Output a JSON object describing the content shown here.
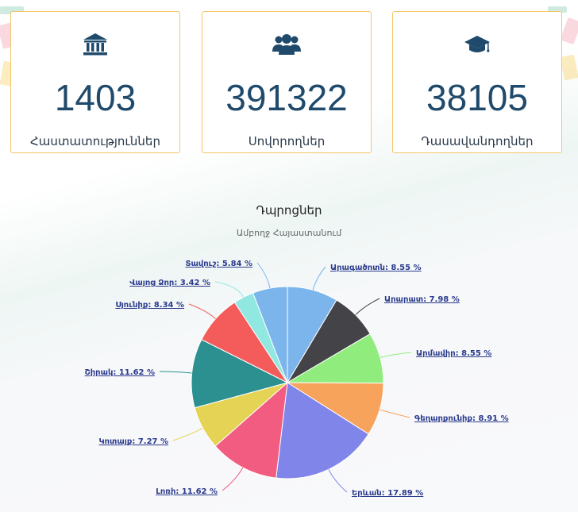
{
  "stats": [
    {
      "value": "1403",
      "label": "Հաստատություններ",
      "icon": "institution-icon"
    },
    {
      "value": "391322",
      "label": "Սովորողներ",
      "icon": "users-icon"
    },
    {
      "value": "38105",
      "label": "Դասավանդողներ",
      "icon": "graduation-cap-icon"
    }
  ],
  "colors": {
    "accent": "#1f4a6b",
    "card_border": "#f3c66a"
  },
  "chart_data": {
    "type": "pie",
    "title": "Դպրոցներ",
    "subtitle": "Ամբողջ Հայաստանում",
    "unit": "%",
    "slices": [
      {
        "name": "Արագածոտն",
        "value": 8.55,
        "color": "#7cb5ec"
      },
      {
        "name": "Արարատ",
        "value": 7.98,
        "color": "#434348"
      },
      {
        "name": "Արմավիր",
        "value": 8.55,
        "color": "#90ed7d"
      },
      {
        "name": "Գեղարքունիք",
        "value": 8.91,
        "color": "#f7a35c"
      },
      {
        "name": "Երևան",
        "value": 17.89,
        "color": "#8085e9"
      },
      {
        "name": "Լոռի",
        "value": 11.62,
        "color": "#f15c80"
      },
      {
        "name": "Կոտայք",
        "value": 7.27,
        "color": "#e4d354"
      },
      {
        "name": "Շիրակ",
        "value": 11.62,
        "color": "#2b908f"
      },
      {
        "name": "Սյունիք",
        "value": 8.34,
        "color": "#f45b5b"
      },
      {
        "name": "Վայոց Ձոր",
        "value": 3.42,
        "color": "#91e8e1"
      },
      {
        "name": "Տավուշ",
        "value": 5.84,
        "color": "#7cb5ec"
      }
    ]
  }
}
